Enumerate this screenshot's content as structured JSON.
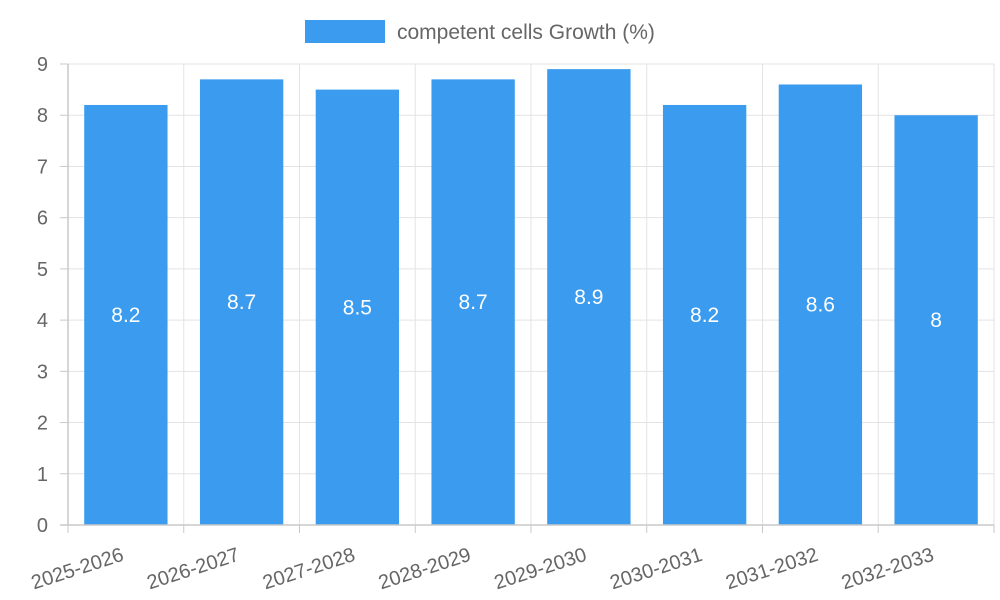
{
  "chart_data": {
    "type": "bar",
    "title": "",
    "xlabel": "",
    "ylabel": "",
    "categories": [
      "2025-2026",
      "2026-2027",
      "2027-2028",
      "2028-2029",
      "2029-2030",
      "2030-2031",
      "2031-2032",
      "2032-2033"
    ],
    "series": [
      {
        "name": "competent cells Growth (%)",
        "values": [
          8.2,
          8.7,
          8.5,
          8.7,
          8.9,
          8.2,
          8.6,
          8
        ]
      }
    ],
    "data_labels": [
      "8.2",
      "8.7",
      "8.5",
      "8.7",
      "8.9",
      "8.2",
      "8.6",
      "8"
    ],
    "ylim": [
      0,
      9
    ],
    "yticks": [
      "0",
      "1",
      "2",
      "3",
      "4",
      "5",
      "6",
      "7",
      "8",
      "9"
    ],
    "grid": true,
    "legend_position": "top-center",
    "colors": {
      "bar": "#3a9bef",
      "grid": "#e3e3e3",
      "axis": "#c8c8c8",
      "text": "#666666",
      "data_label": "#ffffff"
    }
  }
}
